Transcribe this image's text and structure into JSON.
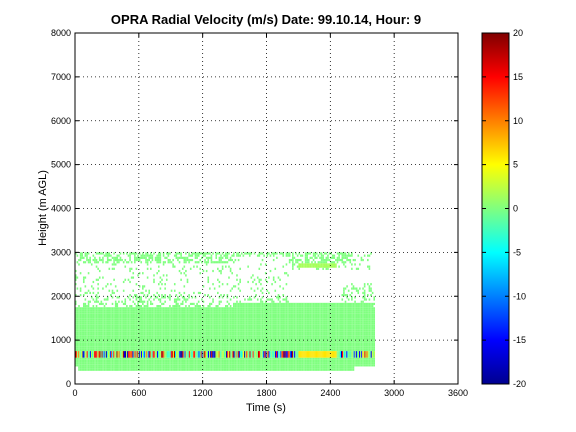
{
  "chart_data": {
    "type": "heatmap",
    "title": "OPRA Radial Velocity (m/s)  Date: 99.10.14, Hour: 9",
    "xlabel": "Time (s)",
    "ylabel": "Height (m AGL)",
    "xlim": [
      0,
      3600
    ],
    "ylim": [
      0,
      8000
    ],
    "xticks": [
      "0",
      "600",
      "1200",
      "1800",
      "2400",
      "3000",
      "3600"
    ],
    "yticks": [
      "0",
      "1000",
      "2000",
      "3000",
      "4000",
      "5000",
      "6000",
      "7000",
      "8000"
    ],
    "grid": true,
    "colorbar": {
      "label": "",
      "range": [
        -20,
        20
      ],
      "ticks": [
        "-20",
        "-15",
        "-10",
        "-5",
        "0",
        "5",
        "10",
        "15",
        "20"
      ]
    },
    "colormap": "jet",
    "data_extent": {
      "time_range_s": [
        0,
        2820
      ],
      "height_range_m": [
        300,
        3000
      ],
      "dominant_velocity_ms": 0,
      "strong_band": {
        "height_m": [
          600,
          750
        ],
        "note_velocity_ms": "mixed -20 to 20",
        "positive_segment_time_s": [
          2100,
          2460
        ],
        "positive_segment_velocity_ms": 6
      }
    }
  }
}
